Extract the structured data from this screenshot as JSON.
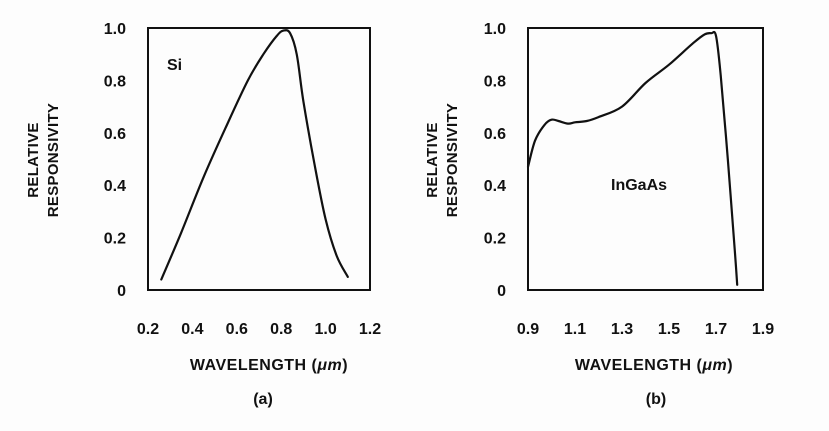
{
  "chart_data": [
    {
      "type": "line",
      "ylabel_line1": "RELATIVE",
      "ylabel_line2": "RESPONSIVITY",
      "xlabel_prefix": "WAVELENGTH (",
      "xlabel_unit": "μm",
      "xlabel_suffix": ")",
      "caption": "(a)",
      "series_label": "Si",
      "xlim": [
        0.2,
        1.2
      ],
      "ylim": [
        0,
        1.0
      ],
      "xticks": [
        "0.2",
        "0.4",
        "0.6",
        "0.8",
        "1.0",
        "1.2"
      ],
      "yticks": [
        "0",
        "0.2",
        "0.4",
        "0.6",
        "0.8",
        "1.0"
      ],
      "grid": false,
      "series": [
        {
          "x": [
            0.26,
            0.35,
            0.45,
            0.55,
            0.65,
            0.72,
            0.78,
            0.81,
            0.84,
            0.87,
            0.9,
            0.95,
            1.0,
            1.05,
            1.1
          ],
          "y": [
            0.04,
            0.22,
            0.43,
            0.62,
            0.8,
            0.9,
            0.97,
            0.99,
            0.98,
            0.9,
            0.72,
            0.48,
            0.27,
            0.13,
            0.05
          ]
        }
      ]
    },
    {
      "type": "line",
      "ylabel_line1": "RELATIVE",
      "ylabel_line2": "RESPONSIVITY",
      "xlabel_prefix": "WAVELENGTH (",
      "xlabel_unit": "μm",
      "xlabel_suffix": ")",
      "caption": "(b)",
      "series_label": "InGaAs",
      "xlim": [
        0.9,
        1.9
      ],
      "ylim": [
        0,
        1.0
      ],
      "xticks": [
        "0.9",
        "1.1",
        "1.3",
        "1.5",
        "1.7",
        "1.9"
      ],
      "yticks": [
        "0",
        "0.2",
        "0.4",
        "0.6",
        "0.8",
        "1.0"
      ],
      "grid": false,
      "series": [
        {
          "x": [
            0.9,
            0.93,
            0.97,
            1.0,
            1.03,
            1.07,
            1.1,
            1.15,
            1.2,
            1.3,
            1.4,
            1.5,
            1.6,
            1.65,
            1.68,
            1.7,
            1.72,
            1.75,
            1.78,
            1.79
          ],
          "y": [
            0.47,
            0.57,
            0.63,
            0.65,
            0.645,
            0.635,
            0.64,
            0.645,
            0.66,
            0.7,
            0.79,
            0.86,
            0.94,
            0.975,
            0.98,
            0.97,
            0.82,
            0.5,
            0.15,
            0.02
          ]
        }
      ]
    }
  ]
}
